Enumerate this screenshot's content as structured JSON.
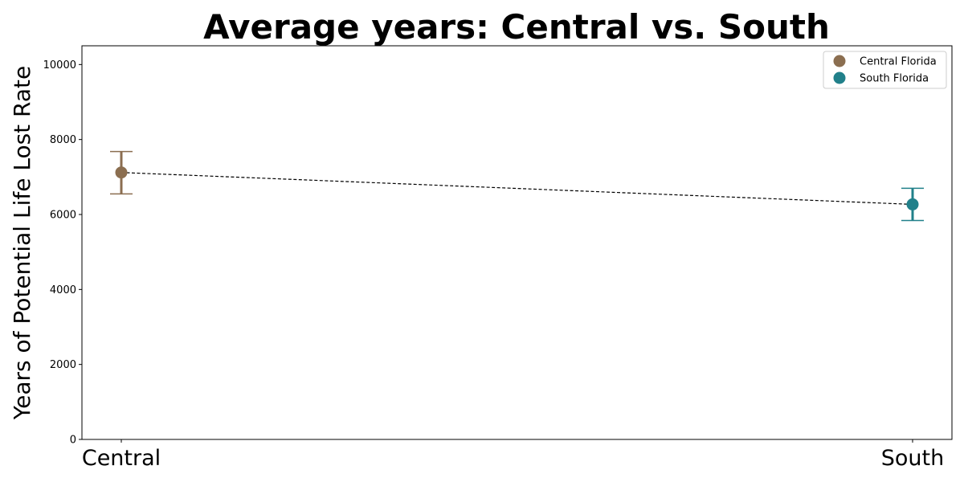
{
  "chart_data": {
    "type": "scatter",
    "title": "Average years: Central vs. South",
    "xlabel": "",
    "ylabel": "Years of Potential Life Lost Rate",
    "categories": [
      "Central",
      "South"
    ],
    "ylim": [
      0,
      10500
    ],
    "yticks": [
      0,
      2000,
      4000,
      6000,
      8000,
      10000
    ],
    "grid": false,
    "legend_position": "top-right",
    "series": [
      {
        "name": "Central Florida",
        "category": "Central",
        "value": 7120,
        "error_low": 6550,
        "error_high": 7680,
        "color": "#8B6E50"
      },
      {
        "name": "South Florida",
        "category": "South",
        "value": 6270,
        "error_low": 5840,
        "error_high": 6700,
        "color": "#21808A"
      }
    ],
    "connector": {
      "style": "dashed",
      "color": "#000000"
    }
  }
}
